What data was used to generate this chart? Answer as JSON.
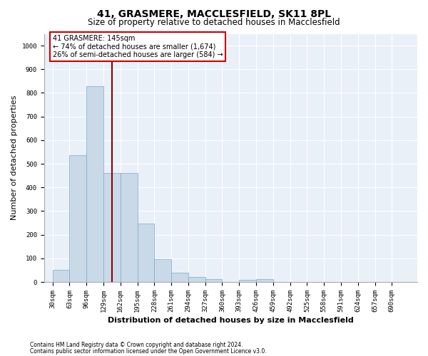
{
  "title": "41, GRASMERE, MACCLESFIELD, SK11 8PL",
  "subtitle": "Size of property relative to detached houses in Macclesfield",
  "xlabel": "Distribution of detached houses by size in Macclesfield",
  "ylabel": "Number of detached properties",
  "footnote1": "Contains HM Land Registry data © Crown copyright and database right 2024.",
  "footnote2": "Contains public sector information licensed under the Open Government Licence v3.0.",
  "bar_labels": [
    "30sqm",
    "63sqm",
    "96sqm",
    "129sqm",
    "162sqm",
    "195sqm",
    "228sqm",
    "261sqm",
    "294sqm",
    "327sqm",
    "360sqm",
    "393sqm",
    "426sqm",
    "459sqm",
    "492sqm",
    "525sqm",
    "558sqm",
    "591sqm",
    "624sqm",
    "657sqm",
    "690sqm"
  ],
  "bar_values": [
    52,
    535,
    830,
    460,
    460,
    247,
    97,
    38,
    22,
    12,
    0,
    10,
    12,
    0,
    0,
    0,
    0,
    0,
    0,
    0,
    0
  ],
  "bar_color": "#c9d9e8",
  "bar_edgecolor": "#7aaac8",
  "property_line_color": "#8b0000",
  "annotation_text": "41 GRASMERE: 145sqm\n← 74% of detached houses are smaller (1,674)\n26% of semi-detached houses are larger (584) →",
  "annotation_box_color": "#ffffff",
  "annotation_box_edgecolor": "#cc0000",
  "ylim": [
    0,
    1050
  ],
  "yticks": [
    0,
    100,
    200,
    300,
    400,
    500,
    600,
    700,
    800,
    900,
    1000
  ],
  "background_color": "#eaf0f8",
  "grid_color": "#ffffff",
  "title_fontsize": 10,
  "subtitle_fontsize": 8.5,
  "tick_fontsize": 6.5,
  "ylabel_fontsize": 8,
  "xlabel_fontsize": 8,
  "footnote_fontsize": 5.5,
  "bin_width": 33,
  "property_sqm": 145
}
